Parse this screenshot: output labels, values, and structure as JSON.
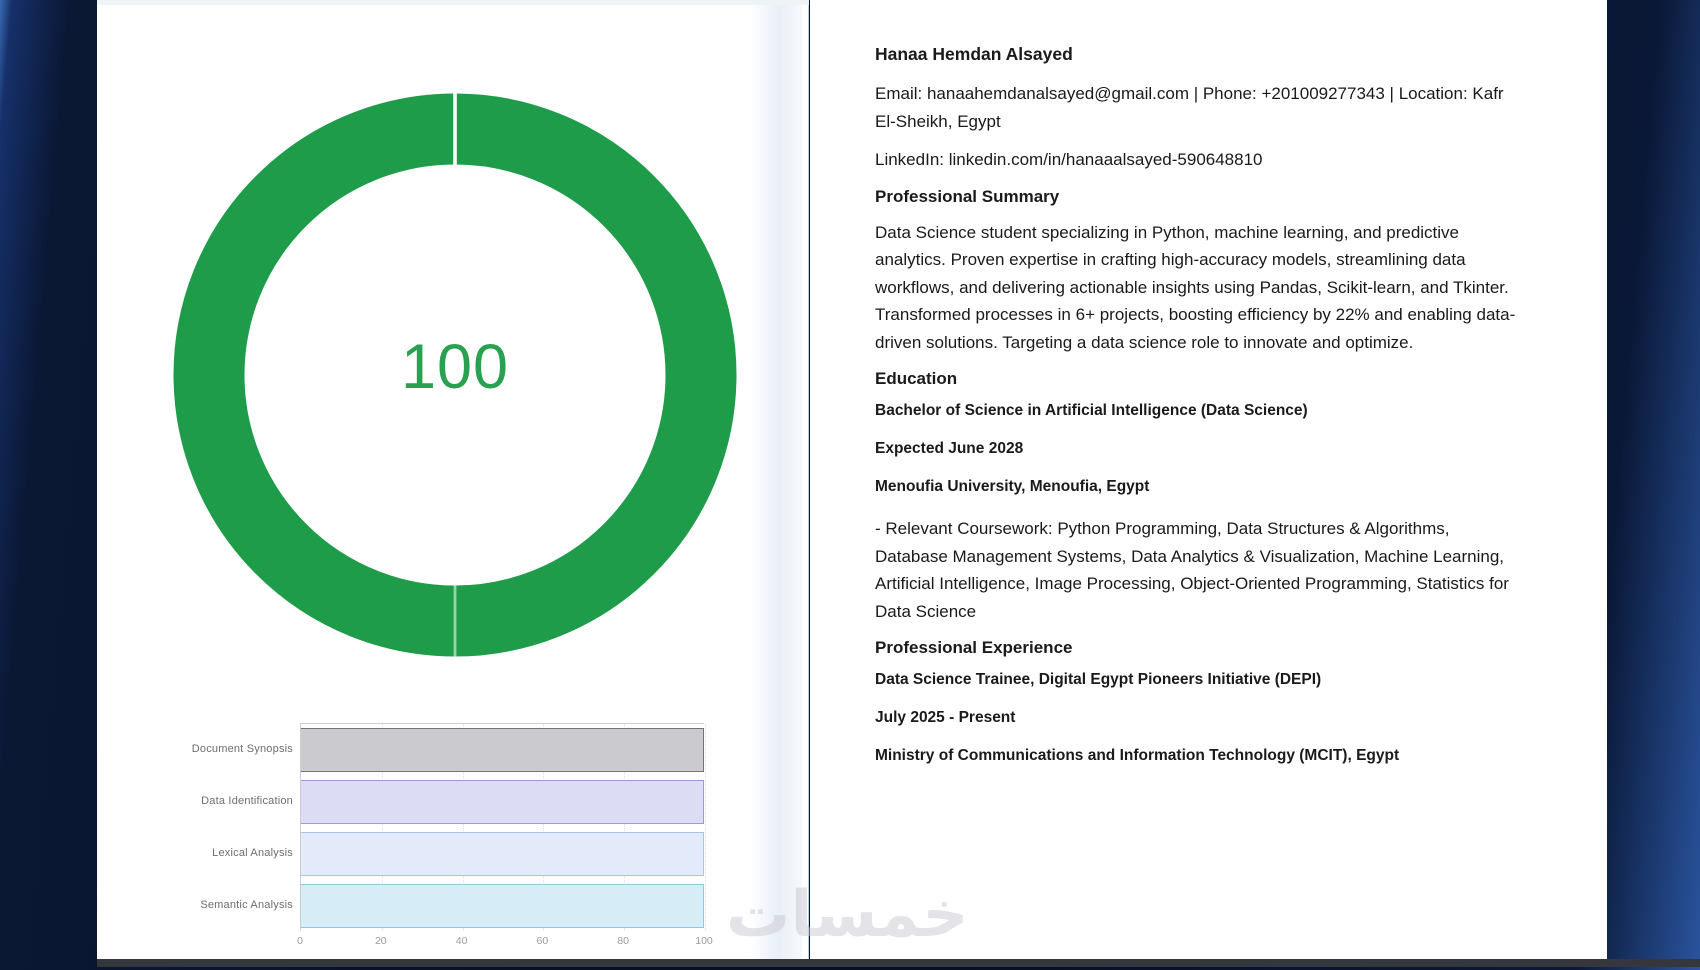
{
  "watermark_text": "خمسات",
  "chart_data": [
    {
      "type": "donut",
      "center_label": "100",
      "value": 100,
      "max": 100,
      "ring_color": "#1f9c49",
      "label_color": "#2aa150",
      "gap_position": "top"
    },
    {
      "type": "bar",
      "orientation": "horizontal",
      "title": "",
      "xlabel": "",
      "ylabel": "",
      "categories": [
        "Document Synopsis",
        "Data Identification",
        "Lexical Analysis",
        "Semantic Analysis"
      ],
      "values": [
        100,
        100,
        100,
        100
      ],
      "xlim": [
        0,
        100
      ],
      "x_ticks": [
        "0",
        "20",
        "40",
        "60",
        "80",
        "100"
      ],
      "grid": true,
      "legend": false,
      "bar_fills": [
        "#cacacf",
        "#dcdcf4",
        "#e3ebfa",
        "#d6edf7"
      ],
      "bar_borders": [
        "#737379",
        "#9c9cd4",
        "#a9c4e8",
        "#8ecade"
      ]
    }
  ],
  "resume": {
    "name": "Hanaa Hemdan Alsayed",
    "contact_line": "Email: hanaahemdanalsayed@gmail.com | Phone: +201009277343 | Location: Kafr El-Sheikh, Egypt",
    "linkedin_line": "LinkedIn: linkedin.com/in/hanaaalsayed-590648810",
    "summary_heading": "Professional Summary",
    "summary_text": "Data Science student specializing in Python, machine learning, and predictive analytics. Proven expertise in crafting high-accuracy models, streamlining data workflows, and delivering actionable insights using Pandas, Scikit-learn, and Tkinter. Transformed processes in 6+ projects, boosting efficiency by 22% and enabling data-driven solutions. Targeting a data science role to innovate and optimize.",
    "education_heading": "Education",
    "education_degree": "Bachelor of Science in Artificial Intelligence (Data Science)",
    "education_date": "Expected June 2028",
    "education_school": "Menoufia University, Menoufia, Egypt",
    "education_coursework": "- Relevant Coursework: Python Programming, Data Structures & Algorithms, Database Management Systems, Data Analytics & Visualization, Machine Learning, Artificial Intelligence, Image Processing, Object-Oriented Programming, Statistics for Data Science",
    "experience_heading": "Professional Experience",
    "experience_title": "Data Science Trainee, Digital Egypt Pioneers Initiative (DEPI)",
    "experience_date": "July 2025 - Present",
    "experience_org": "Ministry of Communications and Information Technology (MCIT), Egypt"
  }
}
